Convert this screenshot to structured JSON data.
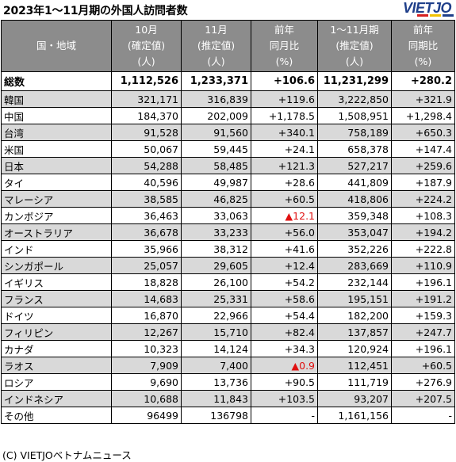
{
  "header": {
    "title": "2023年1～11月期の外国人訪問者数",
    "logo": "VIETJO",
    "logo_colors": [
      "#d62020",
      "#f2c200",
      "#1f3f8a"
    ]
  },
  "table": {
    "columns": [
      {
        "lines": [
          "国・地域"
        ]
      },
      {
        "lines": [
          "10月",
          "(確定値)",
          "(人)"
        ]
      },
      {
        "lines": [
          "11月",
          "(推定値)",
          "(人)"
        ]
      },
      {
        "lines": [
          "前年",
          "同月比",
          "(%)"
        ]
      },
      {
        "lines": [
          "1～11月期",
          "(推定値)",
          "(人)"
        ]
      },
      {
        "lines": [
          "前年",
          "同期比",
          "(%)"
        ]
      }
    ],
    "total": {
      "name": "総数",
      "oct": "1,112,526",
      "nov": "1,233,371",
      "yoy_month": "+106.6",
      "ytd": "11,231,299",
      "yoy_period": "+280.2"
    },
    "rows": [
      {
        "name": "韓国",
        "oct": "321,171",
        "nov": "316,839",
        "yoy_month": "+119.6",
        "ytd": "3,222,850",
        "yoy_period": "+321.9"
      },
      {
        "name": "中国",
        "oct": "184,370",
        "nov": "202,009",
        "yoy_month": "+1,178.5",
        "ytd": "1,508,951",
        "yoy_period": "+1,298.4"
      },
      {
        "name": "台湾",
        "oct": "91,528",
        "nov": "91,560",
        "yoy_month": "+340.1",
        "ytd": "758,189",
        "yoy_period": "+650.3"
      },
      {
        "name": "米国",
        "oct": "50,067",
        "nov": "59,445",
        "yoy_month": "+24.1",
        "ytd": "658,378",
        "yoy_period": "+147.4"
      },
      {
        "name": "日本",
        "oct": "54,288",
        "nov": "58,485",
        "yoy_month": "+121.3",
        "ytd": "527,217",
        "yoy_period": "+259.6"
      },
      {
        "name": "タイ",
        "oct": "40,596",
        "nov": "49,987",
        "yoy_month": "+28.6",
        "ytd": "441,809",
        "yoy_period": "+187.9"
      },
      {
        "name": "マレーシア",
        "oct": "38,585",
        "nov": "46,825",
        "yoy_month": "+60.5",
        "ytd": "418,806",
        "yoy_period": "+224.2"
      },
      {
        "name": "カンボジア",
        "oct": "36,463",
        "nov": "33,063",
        "yoy_month": "▲12.1",
        "ytd": "359,348",
        "yoy_period": "+108.3",
        "neg": true
      },
      {
        "name": "オーストラリア",
        "oct": "36,678",
        "nov": "33,233",
        "yoy_month": "+56.0",
        "ytd": "353,047",
        "yoy_period": "+194.2"
      },
      {
        "name": "インド",
        "oct": "35,966",
        "nov": "38,312",
        "yoy_month": "+41.6",
        "ytd": "352,226",
        "yoy_period": "+222.8"
      },
      {
        "name": "シンガポール",
        "oct": "25,057",
        "nov": "29,605",
        "yoy_month": "+12.4",
        "ytd": "283,669",
        "yoy_period": "+110.9"
      },
      {
        "name": "イギリス",
        "oct": "18,828",
        "nov": "26,100",
        "yoy_month": "+54.2",
        "ytd": "232,144",
        "yoy_period": "+196.1"
      },
      {
        "name": "フランス",
        "oct": "14,683",
        "nov": "25,331",
        "yoy_month": "+58.6",
        "ytd": "195,151",
        "yoy_period": "+191.2"
      },
      {
        "name": "ドイツ",
        "oct": "16,870",
        "nov": "22,966",
        "yoy_month": "+54.4",
        "ytd": "182,200",
        "yoy_period": "+159.3"
      },
      {
        "name": "フィリピン",
        "oct": "12,267",
        "nov": "15,710",
        "yoy_month": "+82.4",
        "ytd": "137,857",
        "yoy_period": "+247.7"
      },
      {
        "name": "カナダ",
        "oct": "10,323",
        "nov": "14,124",
        "yoy_month": "+34.3",
        "ytd": "120,924",
        "yoy_period": "+196.1"
      },
      {
        "name": "ラオス",
        "oct": "7,909",
        "nov": "7,400",
        "yoy_month": "▲0.9",
        "ytd": "112,451",
        "yoy_period": "+60.5",
        "neg": true
      },
      {
        "name": "ロシア",
        "oct": "9,690",
        "nov": "13,736",
        "yoy_month": "+90.5",
        "ytd": "111,719",
        "yoy_period": "+276.9"
      },
      {
        "name": "インドネシア",
        "oct": "10,688",
        "nov": "11,843",
        "yoy_month": "+103.5",
        "ytd": "93,207",
        "yoy_period": "+207.5"
      },
      {
        "name": "その他",
        "oct": "96499",
        "nov": "136798",
        "yoy_month": "-",
        "ytd": "1,161,156",
        "yoy_period": "-"
      }
    ]
  },
  "footer": {
    "credit": "(C) VIETJOベトナムニュース"
  }
}
